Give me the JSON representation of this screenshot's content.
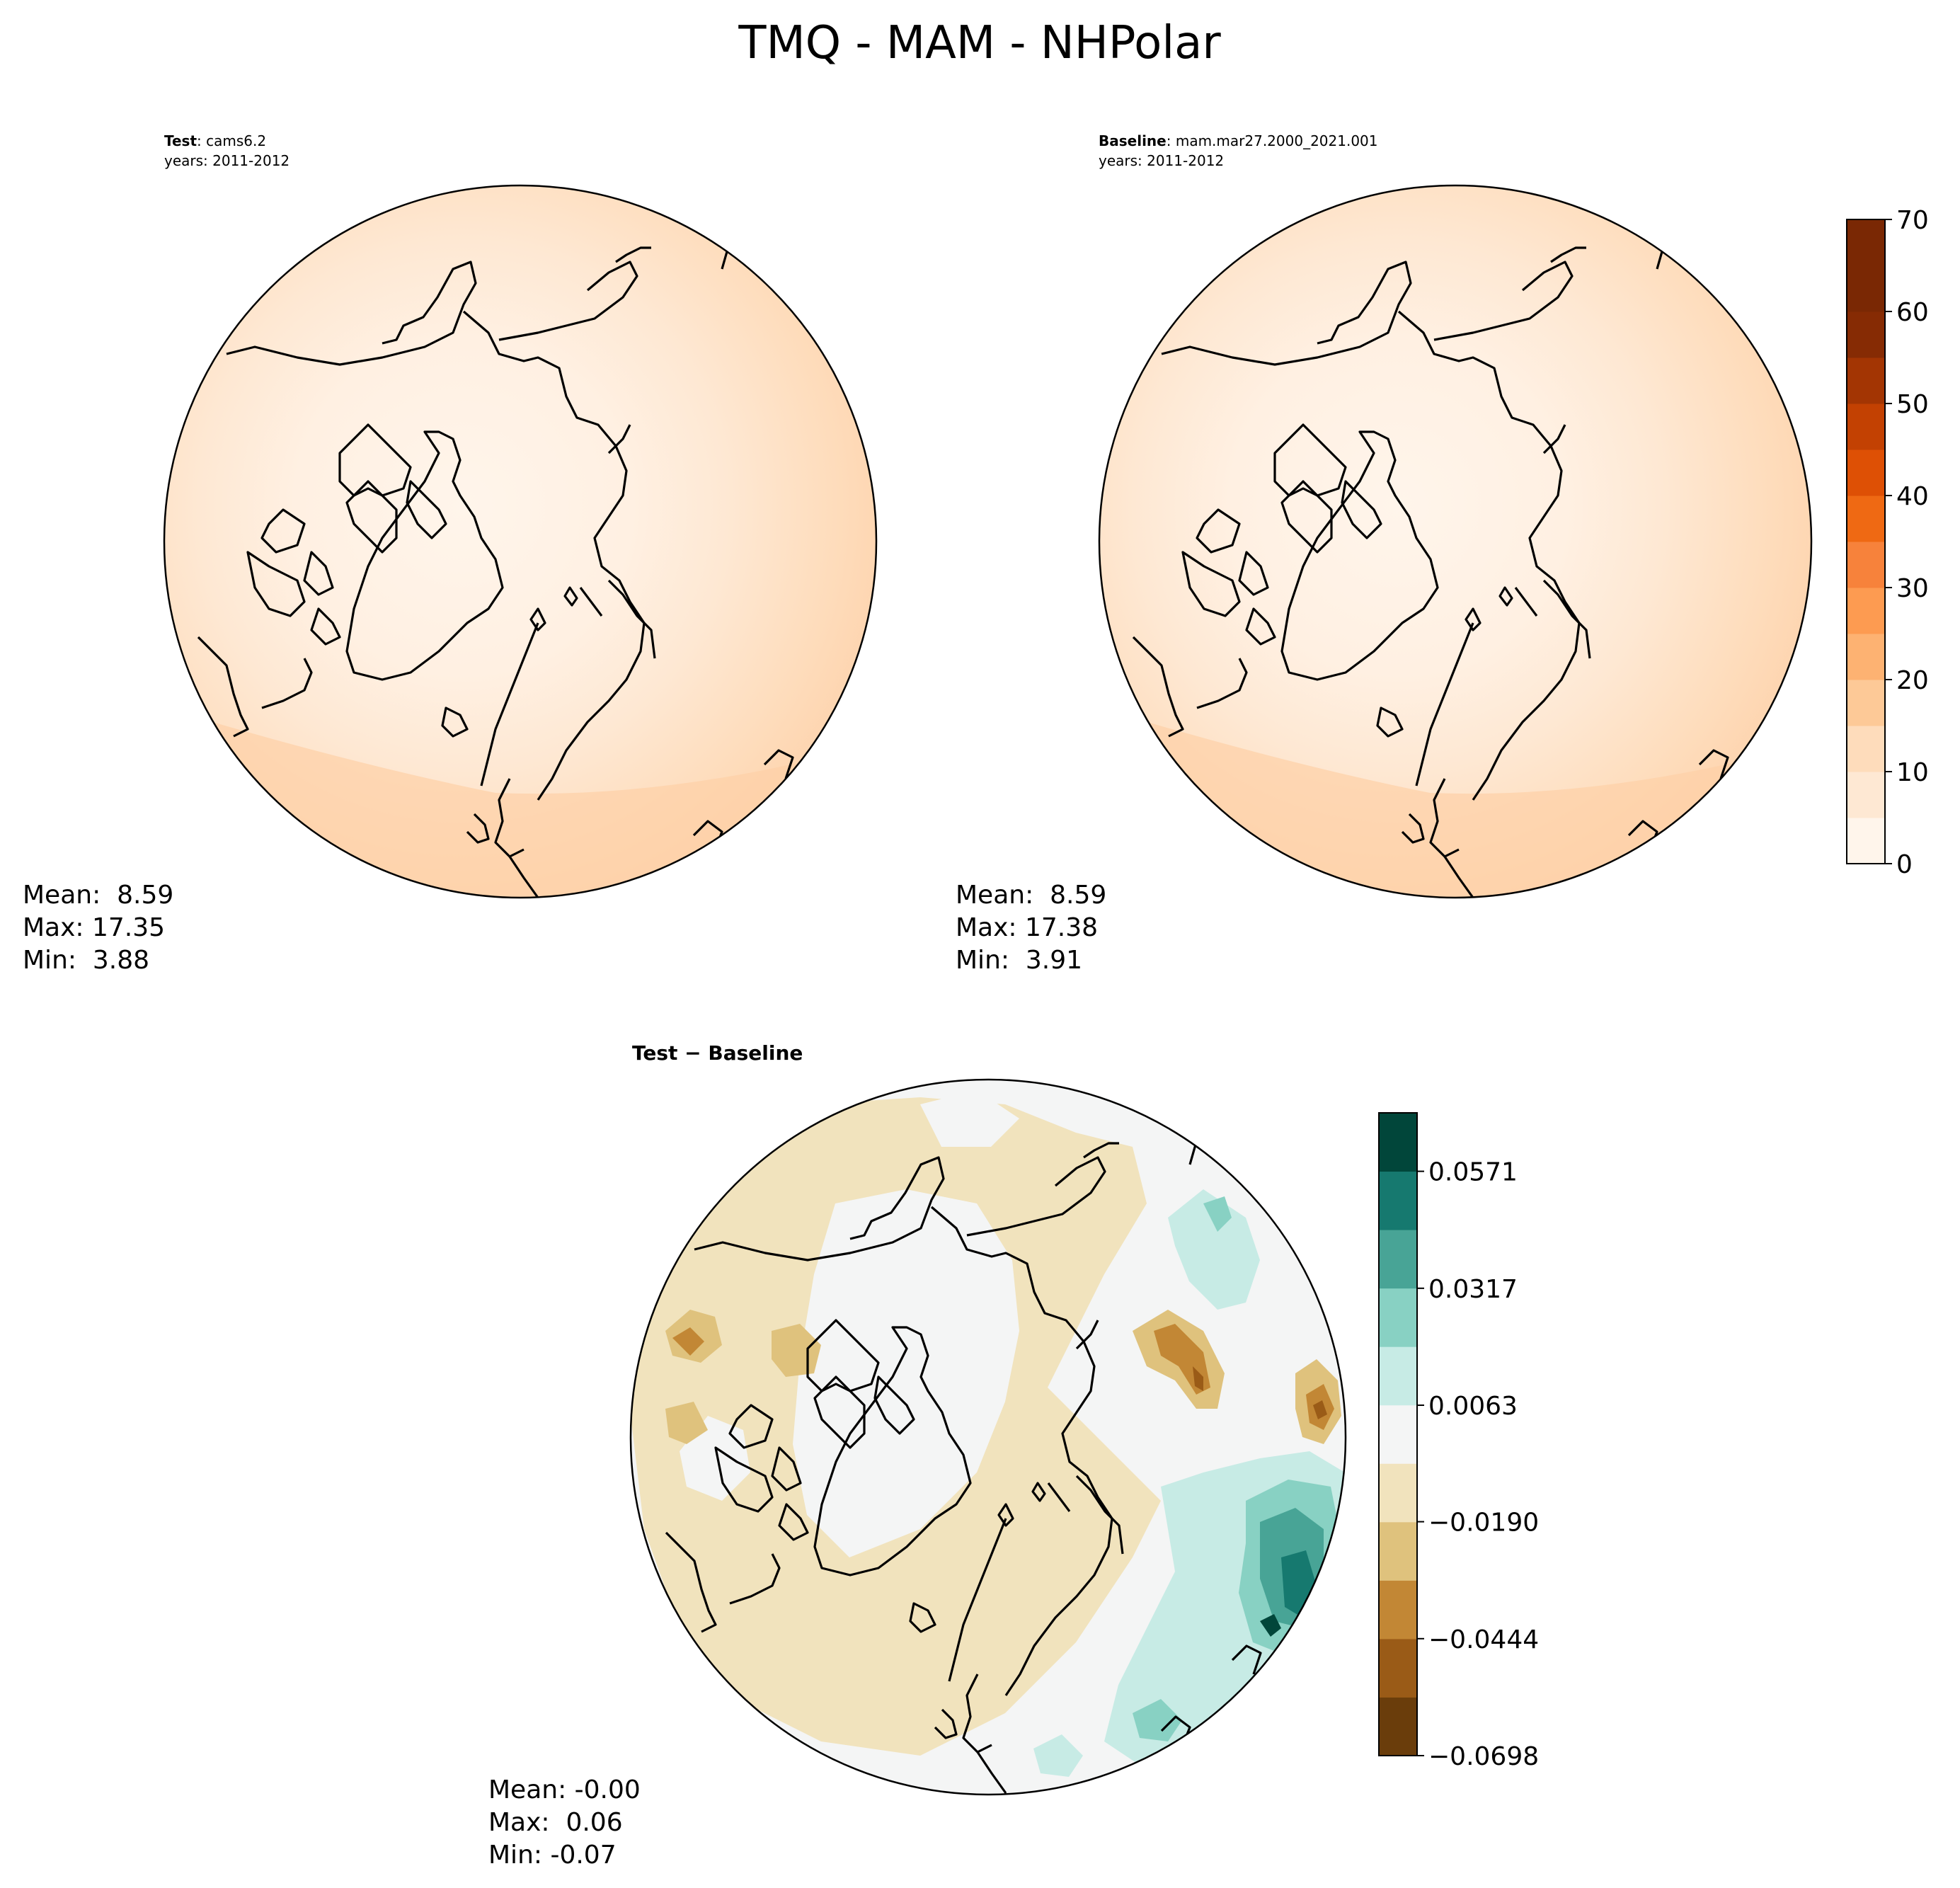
{
  "title": "TMQ - MAM - NHPolar",
  "colors": {
    "oranges": [
      "#fff5eb",
      "#fee8d3",
      "#fedcbb",
      "#fdc997",
      "#fdb272",
      "#fd9b51",
      "#f7823b",
      "#ef6913",
      "#de5005",
      "#c34102",
      "#a33503",
      "#862b04",
      "#7a2804"
    ],
    "diverging": [
      "#6a3d0b",
      "#9a5b17",
      "#c28735",
      "#dfc27d",
      "#f1e3bd",
      "#f4f5f5",
      "#c7ebe5",
      "#88d1c3",
      "#48a496",
      "#16796f",
      "#01463a"
    ],
    "coastline": "#000000"
  },
  "chart_data": [
    {
      "type": "heatmap",
      "panel": "test",
      "title_label": "Test",
      "title_value": ": cams6.2",
      "years": "years: 2011-2012",
      "stats": {
        "mean": "Mean:  8.59",
        "max": "Max: 17.35",
        "min": "Min:  3.88"
      },
      "projection": "north-polar-stereographic",
      "field_range": [
        3.88,
        17.35
      ]
    },
    {
      "type": "heatmap",
      "panel": "baseline",
      "title_label": "Baseline",
      "title_value": ": mam.mar27.2000_2021.001",
      "years": "years: 2011-2012",
      "stats": {
        "mean": "Mean:  8.59",
        "max": "Max: 17.38",
        "min": "Min:  3.91"
      },
      "projection": "north-polar-stereographic",
      "field_range": [
        3.91,
        17.38
      ],
      "colorbar": {
        "range": [
          0,
          70
        ],
        "levels": [
          0,
          5,
          10,
          15,
          20,
          25,
          30,
          35,
          40,
          45,
          50,
          55,
          60,
          65,
          70
        ],
        "ticks": [
          "0",
          "10",
          "20",
          "30",
          "40",
          "50",
          "60",
          "70"
        ],
        "colormap": "Oranges"
      }
    },
    {
      "type": "heatmap",
      "panel": "difference",
      "title_label": "Test − Baseline",
      "stats": {
        "mean": "Mean: -0.00",
        "max": "Max:  0.06",
        "min": "Min: -0.07"
      },
      "projection": "north-polar-stereographic",
      "field_range": [
        -0.07,
        0.06
      ],
      "colorbar": {
        "range": [
          -0.0698,
          0.0698
        ],
        "ticks": [
          "−0.0698",
          "−0.0444",
          "−0.0190",
          "0.0063",
          "0.0317",
          "0.0571"
        ],
        "tick_values": [
          -0.0698,
          -0.0444,
          -0.019,
          0.0063,
          0.0317,
          0.0571
        ],
        "colormap": "BrBG"
      }
    }
  ]
}
